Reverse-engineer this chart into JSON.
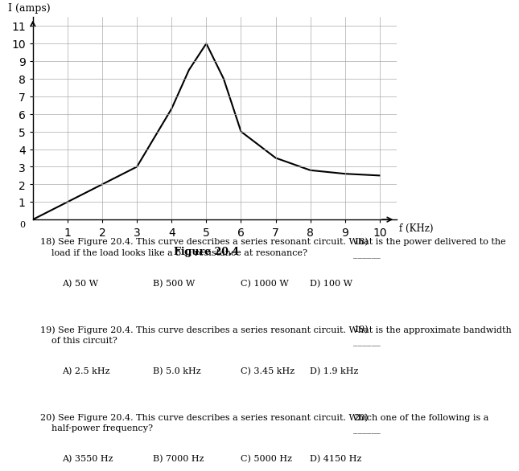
{
  "curve_x": [
    0,
    1,
    2,
    3,
    4,
    4.5,
    5,
    5.5,
    6,
    7,
    8,
    9,
    10
  ],
  "curve_y": [
    0,
    1,
    2,
    3,
    6.3,
    8.5,
    10,
    8.0,
    5.0,
    3.5,
    2.8,
    2.6,
    2.5
  ],
  "xlabel": "f (KHz)",
  "ylabel": "I (amps)",
  "xticks": [
    0,
    1,
    2,
    3,
    4,
    5,
    6,
    7,
    8,
    9,
    10
  ],
  "yticks": [
    0,
    1,
    2,
    3,
    4,
    5,
    6,
    7,
    8,
    9,
    10,
    11
  ],
  "xlim": [
    0,
    10.5
  ],
  "ylim": [
    0,
    11.5
  ],
  "figure_label": "Figure 20.4",
  "q18_text": "18) See Figure 20.4. This curve describes a series resonant circuit. What is the power delivered to the\n    load if the load looks like a 5 Ω resistance at resonance?",
  "q18_a": "A) 50 W",
  "q18_b": "B) 500 W",
  "q18_c": "C) 1000 W",
  "q18_d": "D) 100 W",
  "q18_num": "18)",
  "q19_text": "19) See Figure 20.4. This curve describes a series resonant circuit. What is the approximate bandwidth\n    of this circuit?",
  "q19_a": "A) 2.5 kHz",
  "q19_b": "B) 5.0 kHz",
  "q19_c": "C) 3.45 kHz",
  "q19_d": "D) 1.9 kHz",
  "q19_num": "19)",
  "q20_text": "20) See Figure 20.4. This curve describes a series resonant circuit. Which one of the following is a\n    half-power frequency?",
  "q20_a": "A) 3550 Hz",
  "q20_b": "B) 7000 Hz",
  "q20_c": "C) 5000 Hz",
  "q20_d": "D) 4150 Hz",
  "q20_num": "20)",
  "line_color": "#000000",
  "grid_color": "#aaaaaa",
  "bg_color": "#ffffff"
}
